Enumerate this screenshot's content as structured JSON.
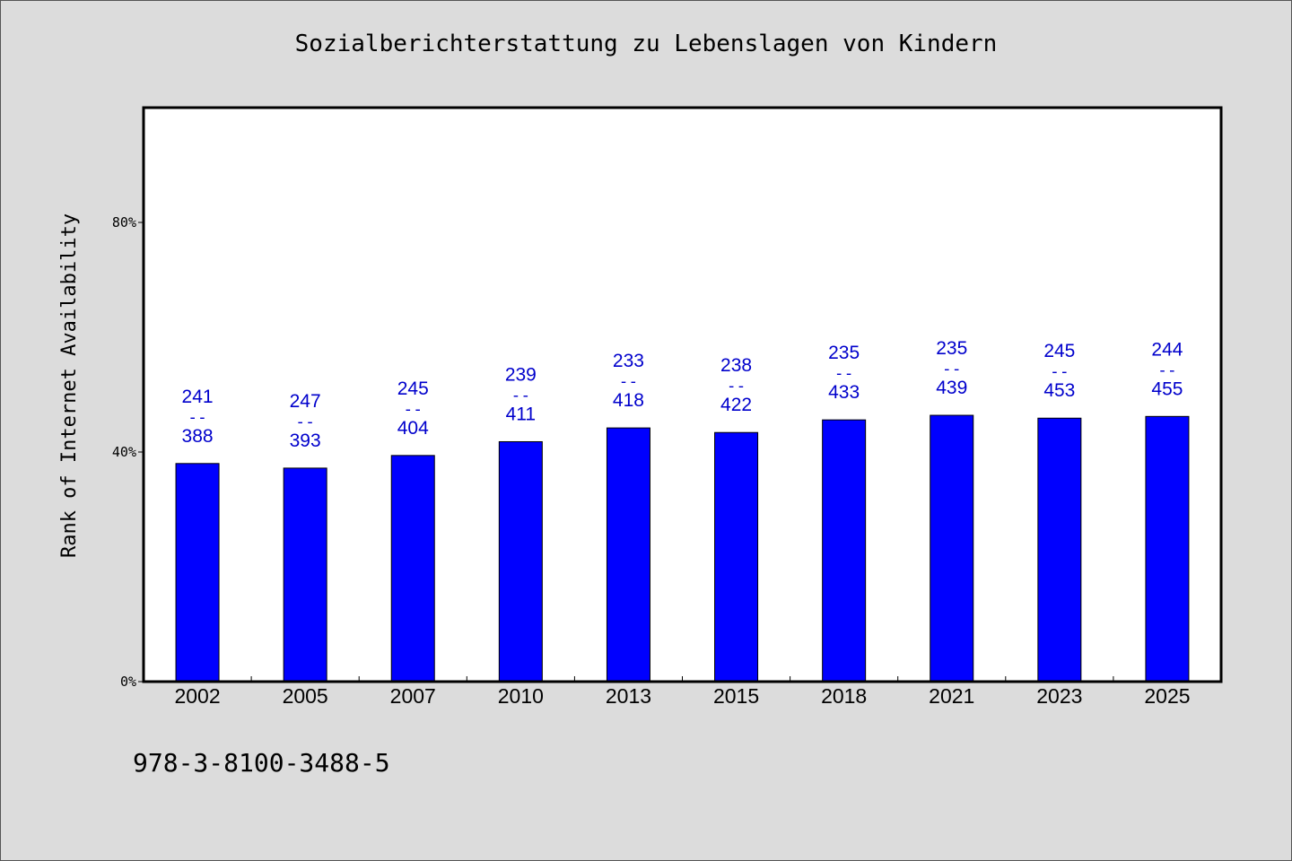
{
  "title": "Sozialberichterstattung zu Lebenslagen von Kindern",
  "footer_text": "978-3-8100-3488-5",
  "chart_data": {
    "type": "bar",
    "title": "Sozialberichterstattung zu Lebenslagen von Kindern",
    "xlabel": "",
    "ylabel": "Rank of Internet Availability",
    "categories": [
      "2002",
      "2005",
      "2007",
      "2010",
      "2013",
      "2015",
      "2018",
      "2021",
      "2023",
      "2025"
    ],
    "values": [
      38,
      37.2,
      39.4,
      41.8,
      44.2,
      43.4,
      45.6,
      46.4,
      45.9,
      46.2
    ],
    "value_unit": "%",
    "labels_top": [
      "241",
      "247",
      "245",
      "239",
      "233",
      "238",
      "235",
      "235",
      "245",
      "244"
    ],
    "labels_bottom": [
      "388",
      "393",
      "404",
      "411",
      "418",
      "422",
      "433",
      "439",
      "453",
      "455"
    ],
    "label_separator": "--",
    "ylim": [
      0,
      100
    ],
    "yticks": [
      0,
      40,
      80
    ],
    "ytick_labels": [
      "0%",
      "40%",
      "80%"
    ],
    "grid": false,
    "bar_color": "#0000ff",
    "label_color": "#0000cc"
  }
}
